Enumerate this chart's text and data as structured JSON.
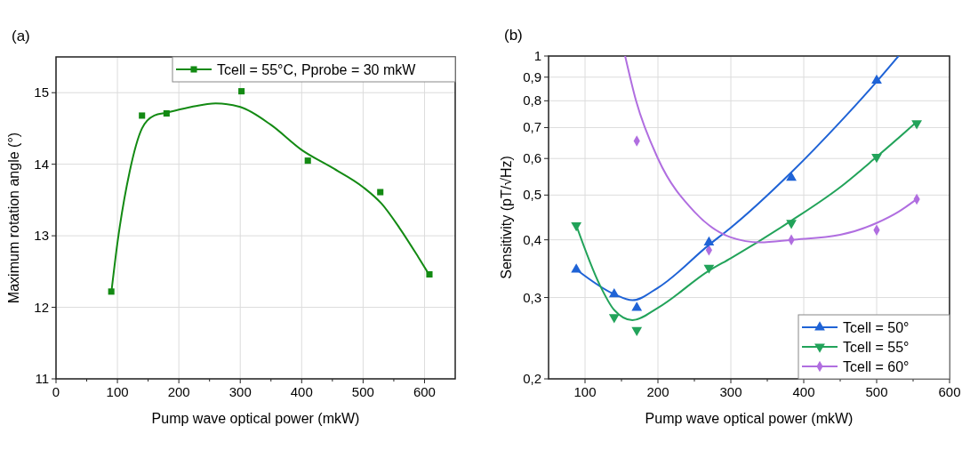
{
  "chart_data": [
    {
      "type": "scatter",
      "title": "(a)",
      "xlabel": "Pump wave optical power (mkW)",
      "ylabel": "Maximum rotation angle (°)",
      "xlim": [
        0,
        650
      ],
      "xticks": [
        0,
        100,
        200,
        300,
        400,
        500,
        600
      ],
      "ylim": [
        11,
        15.5
      ],
      "yticks": [
        11,
        12,
        13,
        14,
        15
      ],
      "grid": true,
      "legend": "top right",
      "series": [
        {
          "name": "Tcell = 55°C, Pprobe = 30 mkW",
          "color": "#138a13",
          "marker": "square",
          "x": [
            90,
            140,
            180,
            302,
            410,
            528,
            608
          ],
          "values": [
            12.22,
            14.68,
            14.71,
            15.02,
            14.05,
            13.61,
            12.46
          ]
        },
        {
          "type": "line",
          "color": "#138a13",
          "marker": "none",
          "x": [
            90,
            100,
            120,
            140,
            160,
            180,
            220,
            260,
            300,
            350,
            400,
            450,
            500,
            530,
            560,
            590,
            608
          ],
          "values": [
            12.2,
            12.9,
            13.9,
            14.5,
            14.68,
            14.72,
            14.8,
            14.85,
            14.8,
            14.55,
            14.2,
            13.95,
            13.68,
            13.45,
            13.1,
            12.7,
            12.45
          ]
        }
      ]
    },
    {
      "type": "scatter",
      "title": "(b)",
      "xlabel": "Pump wave optical power (mkW)",
      "ylabel": "Sensitivity (pT/√Hz)",
      "log": "y",
      "xlim": [
        50,
        600
      ],
      "xticks": [
        100,
        200,
        300,
        400,
        500,
        600
      ],
      "ylim": [
        0.2,
        1
      ],
      "yticks": [
        {
          "value": 0.2,
          "label": "0,2"
        },
        {
          "value": 0.3,
          "label": "0,3"
        },
        {
          "value": 0.4,
          "label": "0,4"
        },
        {
          "value": 0.5,
          "label": "0,5"
        },
        {
          "value": 0.6,
          "label": "0,6"
        },
        {
          "value": 0.7,
          "label": "0,7"
        },
        {
          "value": 0.8,
          "label": "0,8"
        },
        {
          "value": 0.9,
          "label": "0,9"
        },
        1
      ],
      "grid": true,
      "legend": "bottom right",
      "series": [
        {
          "name": "Tcell = 50°",
          "color": "#1f63d6",
          "marker": "triangle",
          "x": [
            88,
            140,
            171,
            270,
            383,
            500
          ],
          "values": [
            0.345,
            0.305,
            0.285,
            0.395,
            0.545,
            0.885
          ]
        },
        {
          "name": "Tcell = 55°",
          "color": "#22a35a",
          "marker": "triangle-down",
          "x": [
            88,
            140,
            171,
            270,
            383,
            500,
            555
          ],
          "values": [
            0.43,
            0.272,
            0.255,
            0.348,
            0.435,
            0.605,
            0.715
          ]
        },
        {
          "name": "Tcell = 60°",
          "color": "#b06ee0",
          "marker": "diamond",
          "x": [
            171,
            270,
            383,
            500,
            555
          ],
          "values": [
            0.655,
            0.38,
            0.4,
            0.42,
            0.49
          ]
        },
        {
          "type": "line",
          "color": "#1f63d6",
          "marker": "none",
          "x": [
            88,
            140,
            165,
            200,
            270,
            300,
            383,
            450,
            500,
            530
          ],
          "values": [
            0.345,
            0.305,
            0.296,
            0.315,
            0.39,
            0.425,
            0.56,
            0.72,
            0.88,
            1.0
          ]
        },
        {
          "type": "line",
          "color": "#22a35a",
          "marker": "none",
          "x": [
            88,
            120,
            140,
            165,
            200,
            270,
            300,
            383,
            450,
            500,
            555
          ],
          "values": [
            0.43,
            0.32,
            0.282,
            0.268,
            0.285,
            0.343,
            0.365,
            0.44,
            0.52,
            0.605,
            0.72
          ]
        },
        {
          "type": "line",
          "color": "#b06ee0",
          "marker": "none",
          "x": [
            155,
            170,
            200,
            250,
            300,
            340,
            383,
            450,
            500,
            530,
            555
          ],
          "values": [
            1.0,
            0.8,
            0.6,
            0.46,
            0.405,
            0.395,
            0.4,
            0.41,
            0.435,
            0.46,
            0.49
          ]
        }
      ]
    }
  ]
}
